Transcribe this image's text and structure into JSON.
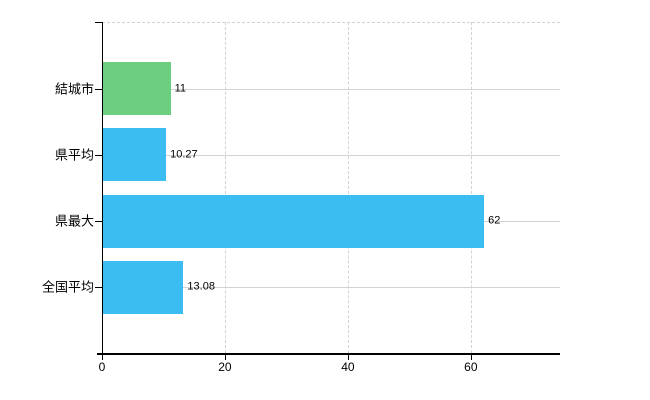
{
  "chart_data": {
    "type": "bar",
    "orientation": "horizontal",
    "title": "",
    "xlabel": "",
    "ylabel": "",
    "categories": [
      "結城市",
      "県平均",
      "県最大",
      "全国平均"
    ],
    "values": [
      11,
      10.27,
      62,
      13.08
    ],
    "value_labels": [
      "11",
      "10.27",
      "62",
      "13.08"
    ],
    "bar_colors": [
      "#6ece80",
      "#3bbdf2",
      "#3bbdf2",
      "#3bbdf2"
    ],
    "xlim": [
      0,
      74.5
    ],
    "xticks": [
      0,
      20,
      40,
      60
    ],
    "xtick_labels": [
      "0",
      "20",
      "40",
      "60"
    ],
    "grid": true,
    "legend": false
  },
  "colors": {
    "bar_green": "#6ece80",
    "bar_blue": "#3bbdf2",
    "gridline": "#d3d3d3",
    "axis": "#000000",
    "text": "#000000",
    "background": "#ffffff"
  }
}
